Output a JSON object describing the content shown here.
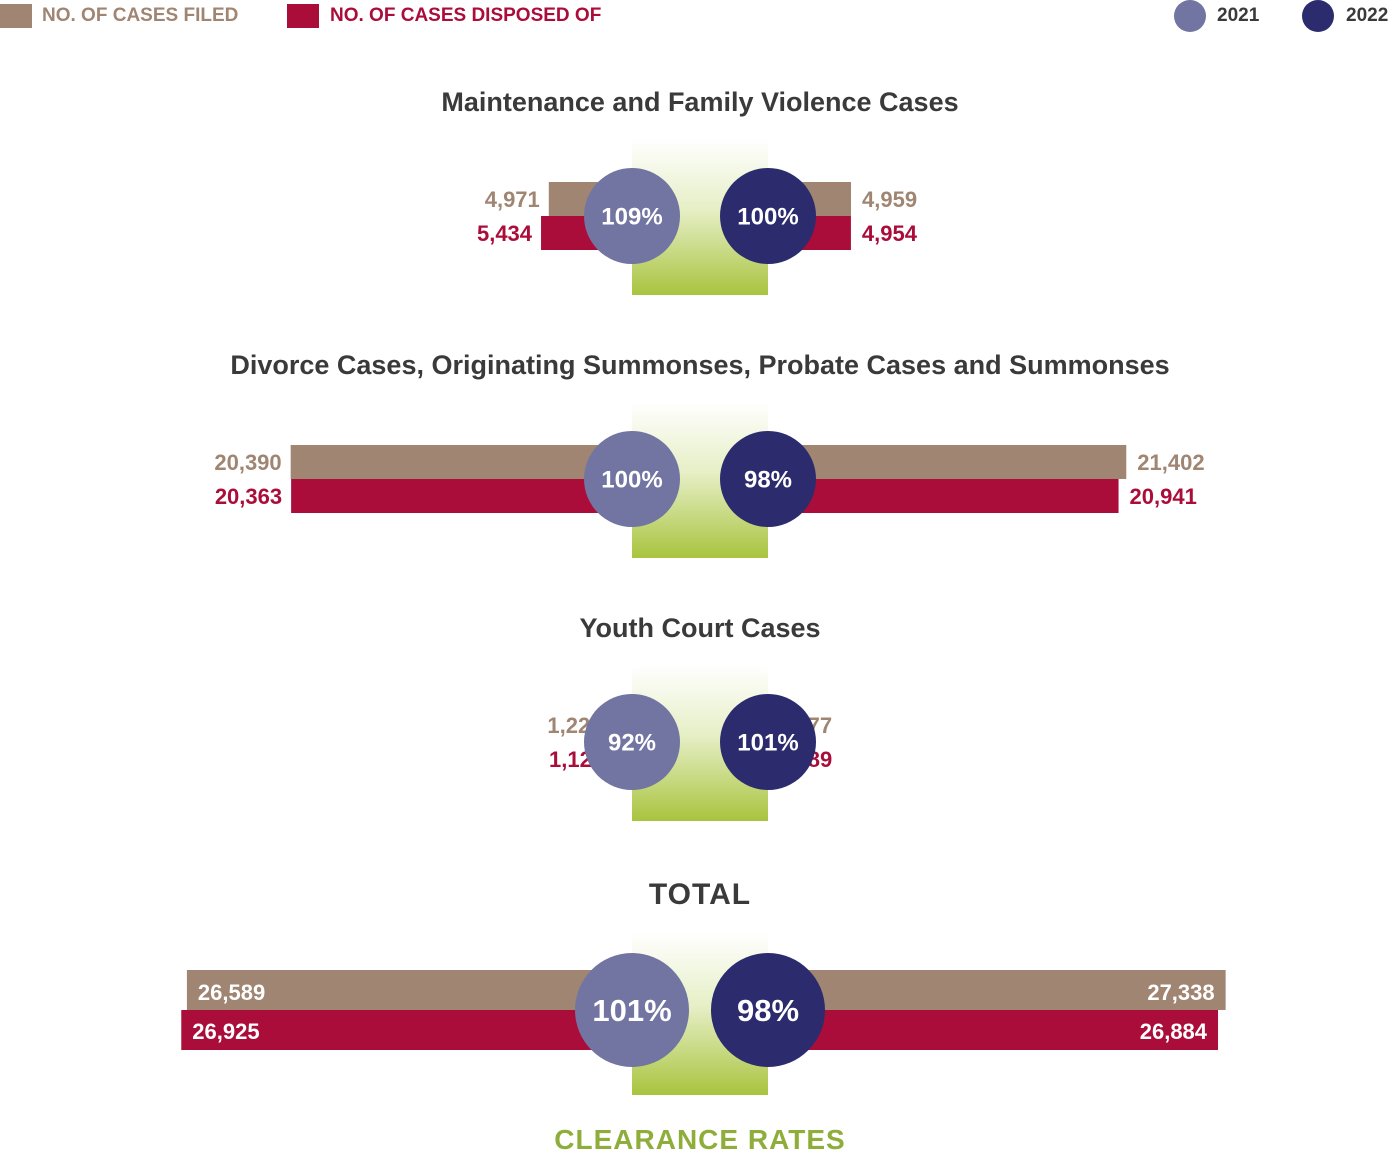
{
  "legend": {
    "filed_label": "NO. OF CASES FILED",
    "disposed_label": "NO. OF CASES DISPOSED OF",
    "year_a": "2021",
    "year_b": "2022"
  },
  "colors": {
    "filed": "#a08672",
    "disposed": "#ab0d3a",
    "year_a": "#7274a2",
    "year_b": "#2b2b6e",
    "clearance_green": "#8fad3a",
    "title_text": "#3a3a3a"
  },
  "footer": {
    "clearance_label": "CLEARANCE RATES"
  },
  "chart_data": {
    "type": "bar",
    "layout": "mirrored-horizontal",
    "series": [
      {
        "name": "NO. OF CASES FILED"
      },
      {
        "name": "NO. OF CASES DISPOSED OF"
      }
    ],
    "years": [
      "2021",
      "2022"
    ],
    "groups": [
      {
        "title": "Maintenance and Family Violence Cases",
        "filed": {
          "2021": 4971,
          "2022": 4959
        },
        "disposed": {
          "2021": 5434,
          "2022": 4954
        },
        "filed_labels": {
          "2021": "4,971",
          "2022": "4,959"
        },
        "disposed_labels": {
          "2021": "5,434",
          "2022": "4,954"
        },
        "clearance": {
          "2021": "109%",
          "2022": "100%"
        }
      },
      {
        "title": "Divorce Cases, Originating Summonses, Probate Cases and Summonses",
        "filed": {
          "2021": 20390,
          "2022": 21402
        },
        "disposed": {
          "2021": 20363,
          "2022": 20941
        },
        "filed_labels": {
          "2021": "20,390",
          "2022": "21,402"
        },
        "disposed_labels": {
          "2021": "20,363",
          "2022": "20,941"
        },
        "clearance": {
          "2021": "100%",
          "2022": "98%"
        }
      },
      {
        "title": "Youth Court Cases",
        "filed": {
          "2021": 1228,
          "2022": 977
        },
        "disposed": {
          "2021": 1128,
          "2022": 989
        },
        "filed_labels": {
          "2021": "1,228",
          "2022": "977"
        },
        "disposed_labels": {
          "2021": "1,128",
          "2022": "989"
        },
        "clearance": {
          "2021": "92%",
          "2022": "101%"
        }
      },
      {
        "title": "TOTAL",
        "filed": {
          "2021": 26589,
          "2022": 27338
        },
        "disposed": {
          "2021": 26925,
          "2022": 26884
        },
        "filed_labels": {
          "2021": "26,589",
          "2022": "27,338"
        },
        "disposed_labels": {
          "2021": "26,925",
          "2022": "26,884"
        },
        "clearance": {
          "2021": "101%",
          "2022": "98%"
        }
      }
    ]
  }
}
